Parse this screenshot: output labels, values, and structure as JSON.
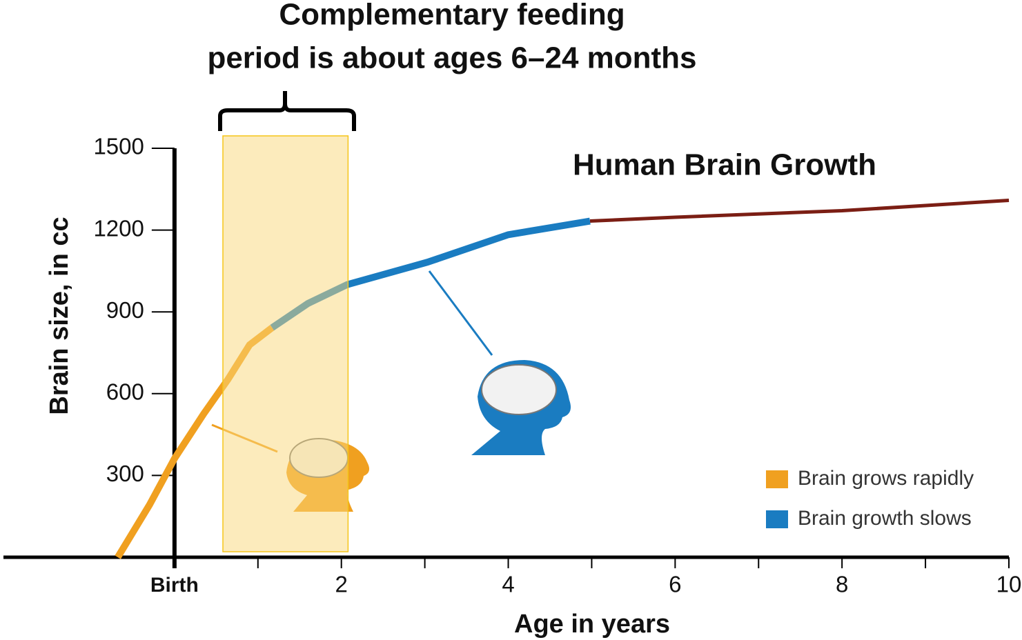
{
  "chart_data": {
    "type": "line",
    "title": "Human Brain Growth",
    "annotation": [
      "Complementary feeding",
      "period is about ages 6–24 months"
    ],
    "x_label": "Age in years",
    "y_label": "Brain size, in cc",
    "xlim": [
      -2.05,
      10
    ],
    "ylim": [
      0,
      1500
    ],
    "xticks": [
      {
        "value": 0,
        "label": "Birth"
      },
      2,
      4,
      6,
      8,
      10
    ],
    "xminor_ticks": [
      1,
      3,
      5,
      7,
      9
    ],
    "yticks": [
      300,
      600,
      900,
      1200,
      1500
    ],
    "highlight": {
      "x": [
        0.58,
        2.08
      ],
      "color": "#f9d77a"
    },
    "series": [
      {
        "name": "Brain grows rapidly",
        "color": "#f0a020",
        "x": [
          -0.68,
          -0.3,
          0,
          0.35,
          0.64,
          0.9,
          1.17
        ],
        "values": [
          0,
          192,
          362,
          526,
          652,
          779,
          842
        ]
      },
      {
        "name": "Brain growth slows",
        "color": "#1a7cc1",
        "x": [
          1.17,
          1.6,
          2.07,
          3.03,
          4,
          4.98
        ],
        "values": [
          842,
          931,
          1000,
          1082,
          1183,
          1233
        ]
      },
      {
        "color": "#7b1e14",
        "x": [
          4.98,
          6,
          8,
          10
        ],
        "values": [
          1233,
          1247,
          1271,
          1309
        ]
      }
    ]
  }
}
